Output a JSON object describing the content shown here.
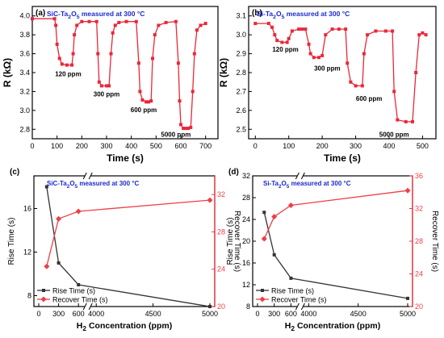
{
  "chart_data": [
    {
      "panel": "(a)",
      "type": "line",
      "annotation": "SiC-Ta2O5 measured at 300 °C",
      "xlabel": "Time (s)",
      "ylabel": "R (kΩ)",
      "xlim": [
        0,
        750
      ],
      "ylim": [
        2.7,
        4.1
      ],
      "xticks": [
        0,
        100,
        200,
        300,
        400,
        500,
        600,
        700
      ],
      "yticks": [
        2.8,
        3.0,
        3.2,
        3.4,
        3.6,
        3.8,
        4.0
      ],
      "ytick_labels": [
        "2.8",
        "3.0",
        "3.2",
        "3.4",
        "3.6",
        "3.8",
        "4.0"
      ],
      "series": [
        {
          "color": "#e8283a",
          "marker": "square",
          "x": [
            0,
            90,
            95,
            100,
            110,
            120,
            140,
            160,
            165,
            170,
            180,
            200,
            230,
            260,
            265,
            270,
            280,
            300,
            310,
            318,
            325,
            335,
            350,
            380,
            420,
            430,
            435,
            445,
            460,
            470,
            480,
            486,
            495,
            510,
            540,
            580,
            590,
            595,
            600,
            610,
            620,
            630,
            640,
            648,
            655,
            665,
            680,
            700
          ],
          "y": [
            3.97,
            3.97,
            3.9,
            3.7,
            3.55,
            3.49,
            3.48,
            3.48,
            3.6,
            3.8,
            3.9,
            3.94,
            3.94,
            3.94,
            3.6,
            3.3,
            3.26,
            3.26,
            3.26,
            3.6,
            3.82,
            3.9,
            3.93,
            3.94,
            3.94,
            3.5,
            3.2,
            3.11,
            3.09,
            3.09,
            3.1,
            3.55,
            3.8,
            3.9,
            3.93,
            3.94,
            3.5,
            3.1,
            2.85,
            2.81,
            2.81,
            2.81,
            2.82,
            3.2,
            3.6,
            3.85,
            3.9,
            3.92
          ]
        }
      ],
      "annotations": [
        {
          "text": "120 ppm",
          "x": 145,
          "y": 3.36
        },
        {
          "text": "300 ppm",
          "x": 300,
          "y": 3.15
        },
        {
          "text": "600 ppm",
          "x": 450,
          "y": 2.98
        },
        {
          "text": "5000 ppm",
          "x": 580,
          "y": 2.72
        }
      ]
    },
    {
      "panel": "(b)",
      "type": "line",
      "annotation": "Si-Ta2O5 measured at 300 °C",
      "xlabel": "Time (s)",
      "ylabel": "R (kΩ)",
      "xlim": [
        -20,
        540
      ],
      "ylim": [
        2.45,
        3.15
      ],
      "xticks": [
        0,
        100,
        200,
        300,
        400,
        500
      ],
      "yticks": [
        2.5,
        2.6,
        2.7,
        2.8,
        2.9,
        3.0,
        3.1
      ],
      "ytick_labels": [
        "2.5",
        "2.6",
        "2.7",
        "2.8",
        "2.9",
        "3.0",
        "3.1"
      ],
      "series": [
        {
          "color": "#e8283a",
          "marker": "square",
          "x": [
            0,
            40,
            50,
            58,
            65,
            80,
            95,
            100,
            110,
            130,
            140,
            150,
            160,
            165,
            175,
            190,
            200,
            210,
            230,
            250,
            270,
            275,
            285,
            300,
            320,
            325,
            335,
            360,
            390,
            410,
            415,
            425,
            450,
            470,
            480,
            490,
            500,
            510
          ],
          "y": [
            3.06,
            3.06,
            3.04,
            3.0,
            2.97,
            2.96,
            2.96,
            2.98,
            3.02,
            3.03,
            3.03,
            3.03,
            2.95,
            2.9,
            2.88,
            2.88,
            2.89,
            3.0,
            3.03,
            3.03,
            3.03,
            2.85,
            2.75,
            2.73,
            2.73,
            2.9,
            3.0,
            3.02,
            3.02,
            3.02,
            2.7,
            2.55,
            2.54,
            2.54,
            2.8,
            3.0,
            3.01,
            3.0
          ]
        }
      ],
      "annotations": [
        {
          "text": "120 ppm",
          "x": 90,
          "y": 2.91
        },
        {
          "text": "300 ppm",
          "x": 215,
          "y": 2.81
        },
        {
          "text": "600 ppm",
          "x": 340,
          "y": 2.65
        },
        {
          "text": "5000 ppm",
          "x": 415,
          "y": 2.46
        }
      ]
    },
    {
      "panel": "(c)",
      "type": "line",
      "annotation": "SiC-Ta2O5 measured at 300 °C",
      "xlabel": "H2 Concentration (ppm)",
      "ylabel": "Rise Time (s)",
      "y2label": "Recover Time (s)",
      "xticks": [
        0,
        300,
        600,
        4000,
        4500,
        5000
      ],
      "ylim": [
        7,
        19
      ],
      "yticks": [
        8,
        12,
        16
      ],
      "y2lim": [
        20,
        34
      ],
      "y2ticks": [
        20,
        24,
        28,
        32
      ],
      "legend_position": "bottom-left",
      "series": [
        {
          "name": "Rise Time (s)",
          "axis": "left",
          "color": "#333333",
          "marker": "square",
          "x": [
            120,
            300,
            600,
            5000
          ],
          "y": [
            18,
            11,
            9,
            7
          ]
        },
        {
          "name": "Recover Time (s)",
          "axis": "right",
          "color": "#ee3e48",
          "marker": "diamond",
          "x": [
            120,
            300,
            600,
            5000
          ],
          "y": [
            24.3,
            29.4,
            30.2,
            31.4
          ]
        }
      ]
    },
    {
      "panel": "(d)",
      "type": "line",
      "annotation": "Si-Ta2O5 measured at 300 °C",
      "xlabel": "H2 Concentration (ppm)",
      "ylabel": "Rise Time (s)",
      "y2label": "Recover Time (s)",
      "xticks": [
        0,
        300,
        600,
        4000,
        4500,
        5000
      ],
      "ylim": [
        8,
        32
      ],
      "yticks": [
        8,
        12,
        16,
        20,
        24,
        28,
        32
      ],
      "y2lim": [
        20,
        36
      ],
      "y2ticks": [
        20,
        24,
        28,
        32,
        36
      ],
      "legend_position": "bottom-left",
      "series": [
        {
          "name": "Rise Time (s)",
          "axis": "left",
          "color": "#333333",
          "marker": "square",
          "x": [
            120,
            300,
            600,
            5000
          ],
          "y": [
            25.3,
            17.5,
            13.2,
            9.5
          ]
        },
        {
          "name": "Recover Time (s)",
          "axis": "right",
          "color": "#ee3e48",
          "marker": "diamond",
          "x": [
            120,
            300,
            600,
            5000
          ],
          "y": [
            28.3,
            31.0,
            32.4,
            34.2
          ]
        }
      ]
    }
  ]
}
